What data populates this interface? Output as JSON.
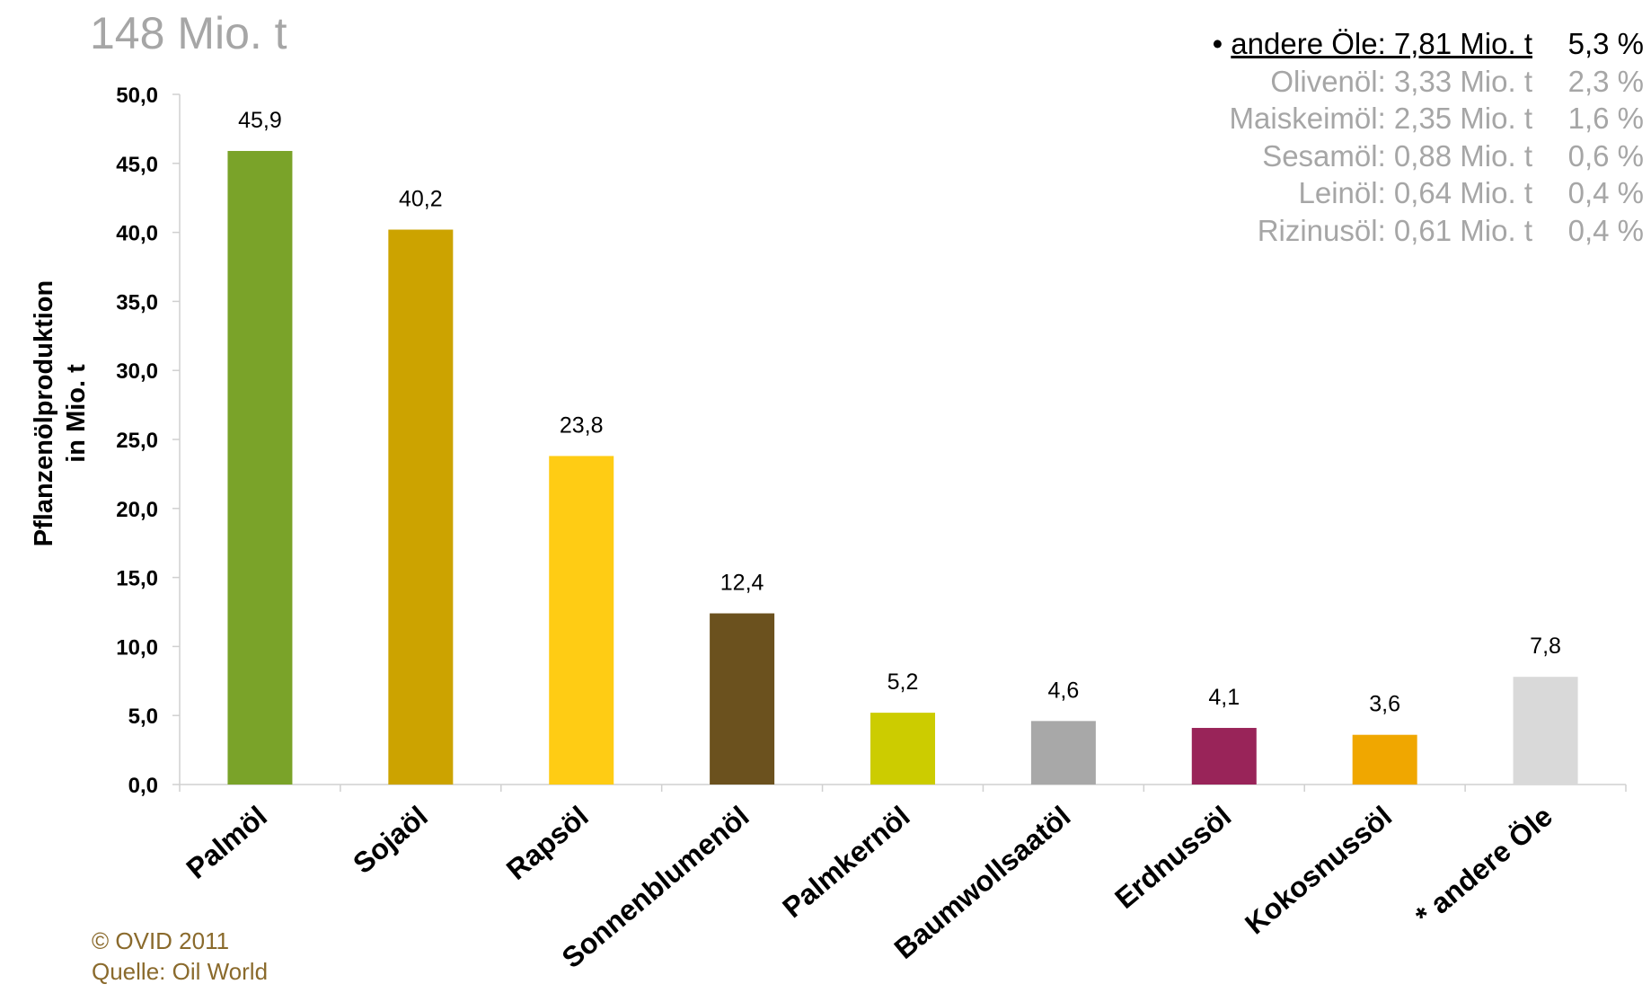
{
  "header": {
    "total": "148 Mio. t"
  },
  "breakdown": [
    {
      "prefix": "• ",
      "name": "andere Öle: 7,81 Mio. t",
      "pct": "5,3 %",
      "main": true
    },
    {
      "prefix": "",
      "name": "Olivenöl: 3,33 Mio. t",
      "pct": "2,3 %",
      "main": false
    },
    {
      "prefix": "",
      "name": "Maiskeimöl: 2,35 Mio. t",
      "pct": "1,6 %",
      "main": false
    },
    {
      "prefix": "",
      "name": "Sesamöl: 0,88 Mio. t",
      "pct": "0,6 %",
      "main": false
    },
    {
      "prefix": "",
      "name": "Leinöl: 0,64 Mio. t",
      "pct": "0,4 %",
      "main": false
    },
    {
      "prefix": "",
      "name": "Rizinusöl: 0,61 Mio. t",
      "pct": "0,4 %",
      "main": false
    }
  ],
  "footer": {
    "copyright": "© OVID 2011",
    "source": "Quelle: Oil World"
  },
  "chart_data": {
    "type": "bar",
    "title": "",
    "xlabel": "",
    "ylabel": "Pflanzenölproduktion in Mio. t",
    "ylabel_lines": [
      "Pflanzenölproduktion",
      "in Mio. t"
    ],
    "ylim": [
      0,
      50
    ],
    "yticks": [
      "0,0",
      "5,0",
      "10,0",
      "15,0",
      "20,0",
      "25,0",
      "30,0",
      "35,0",
      "40,0",
      "45,0",
      "50,0"
    ],
    "grid": false,
    "categories": [
      "Palmöl",
      "Sojaöl",
      "Rapsöl",
      "Sonnenblumenöl",
      "Palmkernöl",
      "Baumwollsaatöl",
      "Erdnussöl",
      "Kokosnussöl",
      "* andere Öle"
    ],
    "values": [
      45.9,
      40.2,
      23.8,
      12.4,
      5.2,
      4.6,
      4.1,
      3.6,
      7.8
    ],
    "labels": [
      "45,9",
      "40,2",
      "23,8",
      "12,4",
      "5,2",
      "4,6",
      "4,1",
      "3,6",
      "7,8"
    ],
    "colors": [
      "#7aa329",
      "#cca300",
      "#ffcc14",
      "#6b511e",
      "#cccc00",
      "#a8a8a8",
      "#992459",
      "#f0a700",
      "#d9d9d9"
    ]
  }
}
